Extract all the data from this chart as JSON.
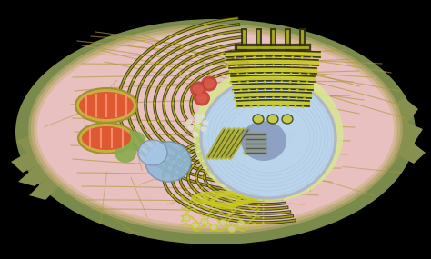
{
  "background_color": "#000000",
  "cell_outer_color": "#7a8a4a",
  "cell_body_color": "#e8c0c0",
  "cell_membrane_color": "#c8b080",
  "nucleus_color": "#b8d4f0",
  "nucleus_border_color": "#9090b0",
  "nucleolus_color": "#8090b8",
  "nucleus_glow_color": "#d8e890",
  "er_color": "#c8c820",
  "er_dark_color": "#303010",
  "fiber_color": "#b09840",
  "mito_outer_color": "#c8b040",
  "mito_fill_color": "#e05030",
  "mito_inner_color": "#ff8060",
  "lyso_color": "#88aa50",
  "vacuole1_color": "#90b8d8",
  "vacuole2_color": "#a8c8e8",
  "ribo_color": "#e0e0d0",
  "perox_color": "#b84030",
  "golgi_cis_color": "#303010",
  "smooth_er_color": "#c8c820",
  "vesicle_color": "#c8c890",
  "filopodia_left_color": "#889050",
  "centriole_color": "#b0b020"
}
